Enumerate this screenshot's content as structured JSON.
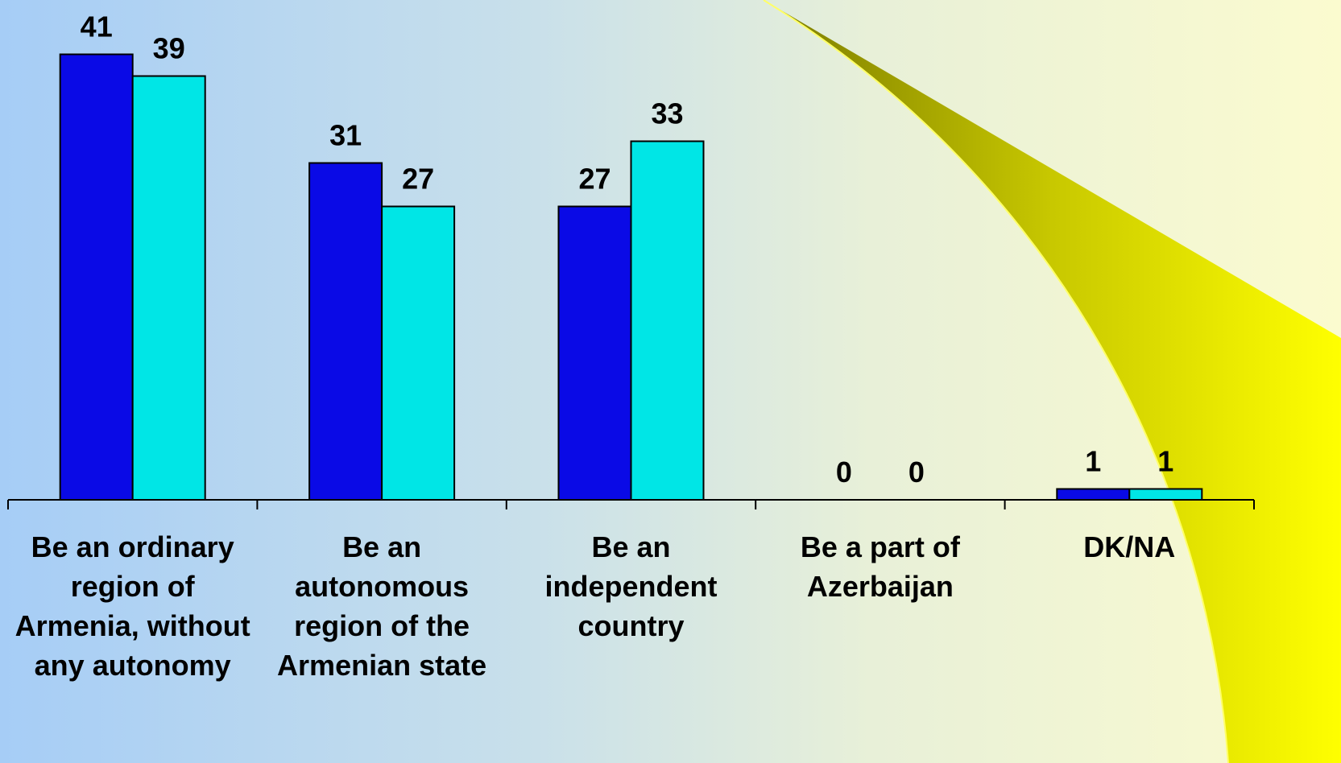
{
  "chart_data": {
    "type": "bar",
    "categories": [
      "Be an ordinary region of Armenia, without any autonomy",
      "Be an autonomous region of the Armenian state",
      "Be an independent country",
      "Be a part of Azerbaijan",
      "DK/NA"
    ],
    "series": [
      {
        "color": "#0a0ae6",
        "values": [
          41,
          31,
          27,
          0,
          1
        ]
      },
      {
        "color": "#00e6e6",
        "values": [
          39,
          27,
          33,
          0,
          1
        ]
      }
    ],
    "ylim": [
      0,
      46
    ]
  }
}
